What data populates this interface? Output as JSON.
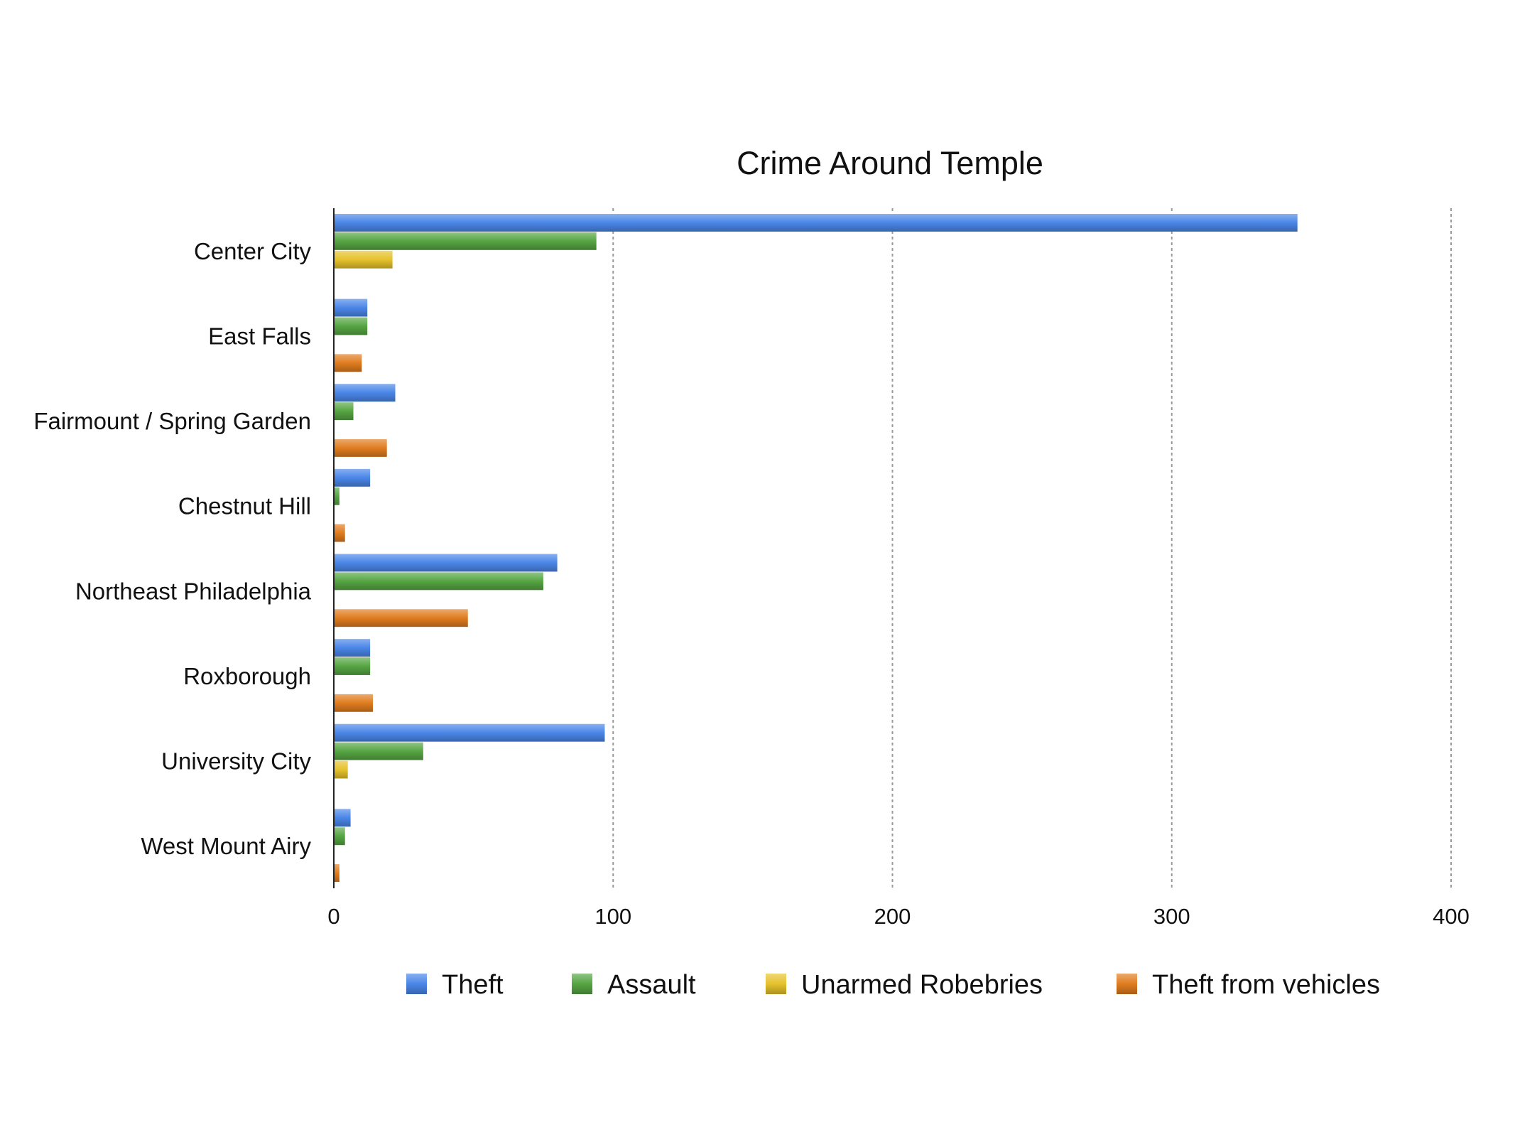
{
  "chart_data": {
    "type": "bar",
    "orientation": "horizontal",
    "title": "Crime Around Temple",
    "xlabel": "",
    "ylabel": "",
    "xlim": [
      0,
      400
    ],
    "xticks": [
      "0",
      "100",
      "200",
      "300",
      "400"
    ],
    "grid": "vertical dashed",
    "legend_position": "bottom",
    "categories": [
      "Center City",
      "East Falls",
      "Fairmount / Spring Garden",
      "Chestnut Hill",
      "Northeast Philadelphia",
      "Roxborough",
      "University City",
      "West Mount Airy"
    ],
    "series": [
      {
        "name": "Theft",
        "color": "#4a86e8",
        "values": [
          345,
          12,
          22,
          13,
          80,
          13,
          97,
          6
        ]
      },
      {
        "name": "Assault",
        "color": "#56a543",
        "values": [
          94,
          12,
          7,
          2,
          75,
          13,
          32,
          4
        ]
      },
      {
        "name": "Unarmed Robebries",
        "color": "#e6c22c",
        "values": [
          21,
          0,
          0,
          0,
          0,
          0,
          5,
          0
        ]
      },
      {
        "name": "Theft from vehicles",
        "color": "#e07c1f",
        "values": [
          0,
          10,
          19,
          4,
          48,
          14,
          0,
          2
        ]
      }
    ]
  }
}
